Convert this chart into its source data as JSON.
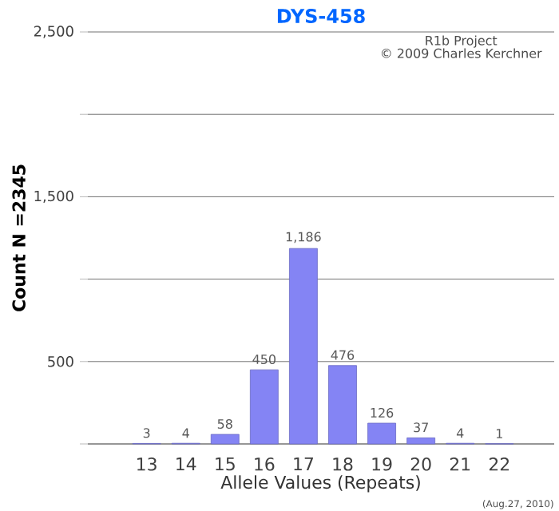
{
  "chart_data": {
    "type": "bar",
    "title": "DYS-458",
    "xlabel": "Allele Values (Repeats)",
    "ylabel": "Count N =2345",
    "categories": [
      "13",
      "14",
      "15",
      "16",
      "17",
      "18",
      "19",
      "20",
      "21",
      "22"
    ],
    "values": [
      3,
      4,
      58,
      450,
      1186,
      476,
      126,
      37,
      4,
      1
    ],
    "value_labels": [
      "3",
      "4",
      "58",
      "450",
      "1,186",
      "476",
      "126",
      "37",
      "4",
      "1"
    ],
    "color": "#8484f4",
    "ylim": [
      0,
      2500
    ],
    "yticks": [
      {
        "value": 0,
        "label": null
      },
      500,
      {
        "value": 1000,
        "label": null
      },
      {
        "value": 1500,
        "label": "1,500"
      },
      {
        "value": 2000,
        "label": null
      },
      {
        "value": 2500,
        "label": "2,500"
      }
    ],
    "grid": "y",
    "annotations": [
      "R1b Project",
      "© 2009 Charles Kerchner",
      "(Aug.27, 2010)"
    ]
  }
}
